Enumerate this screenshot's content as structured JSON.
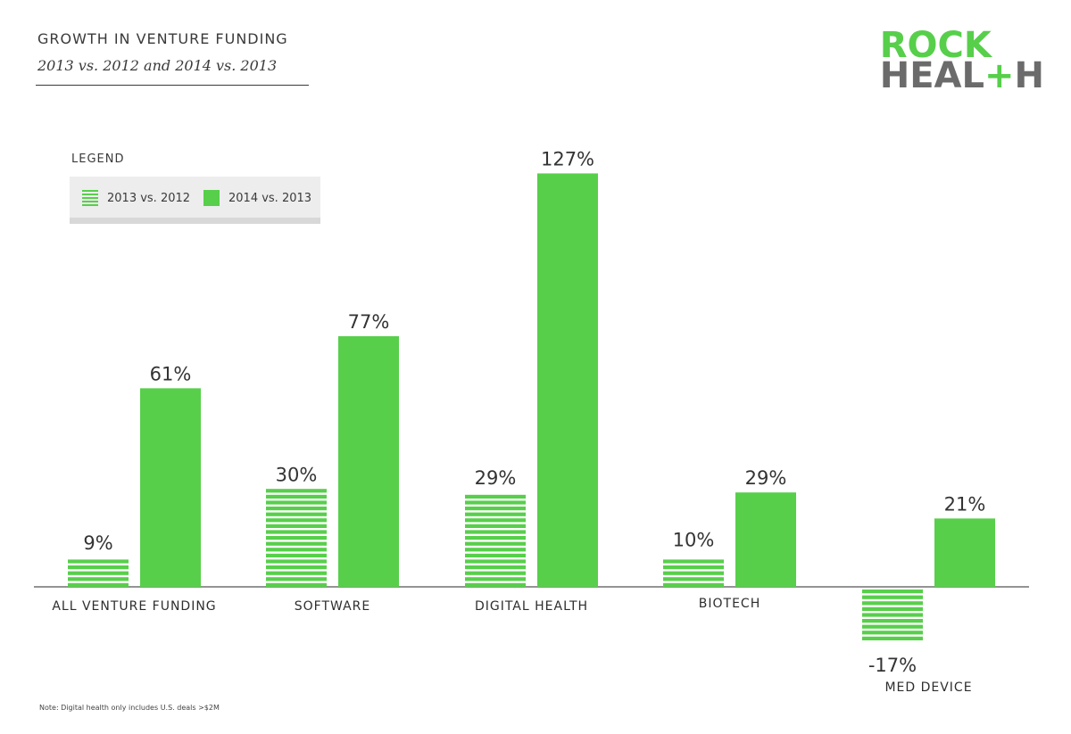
{
  "header": {
    "title": "GROWTH IN VENTURE FUNDING",
    "subtitle": "2013 vs. 2012 and 2014 vs. 2013"
  },
  "logo": {
    "line1": "ROCK",
    "line2_a": "HEAL",
    "line2_plus": "+",
    "line2_b": "H"
  },
  "legend": {
    "title": "LEGEND",
    "items": [
      {
        "label": "2013 vs. 2012",
        "style": "striped"
      },
      {
        "label": "2014 vs. 2013",
        "style": "solid"
      }
    ]
  },
  "colors": {
    "accent": "#57cf4b",
    "text": "#3a3a3a",
    "axis": "#555555",
    "legend_bg": "#ededed"
  },
  "chart_data": {
    "type": "bar",
    "categories": [
      "ALL VENTURE FUNDING",
      "SOFTWARE",
      "DIGITAL HEALTH",
      "BIOTECH",
      "MED DEVICE"
    ],
    "series": [
      {
        "name": "2013 vs. 2012",
        "values": [
          9,
          30,
          29,
          10,
          -17
        ],
        "labels": [
          "9%",
          "30%",
          "29%",
          "10%",
          "-17%"
        ]
      },
      {
        "name": "2014 vs. 2013",
        "values": [
          61,
          77,
          127,
          29,
          21
        ],
        "labels": [
          "61%",
          "77%",
          "127%",
          "29%",
          "21%"
        ]
      }
    ],
    "ylim": [
      -17,
      127
    ],
    "unit": "%",
    "grid": false
  },
  "note": "Note: Digital health only includes U.S. deals >$2M"
}
